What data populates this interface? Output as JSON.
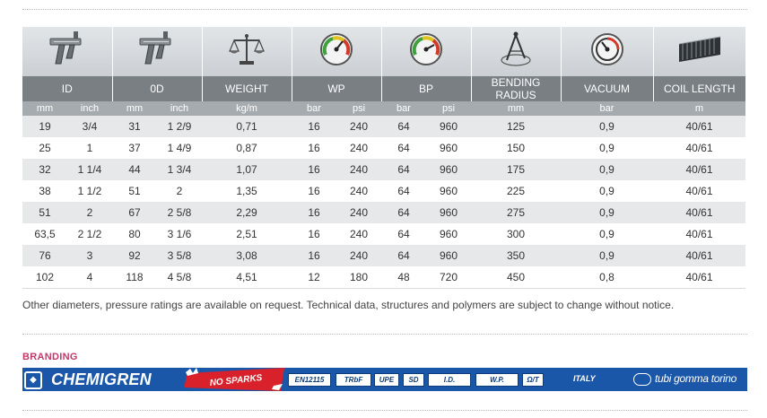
{
  "table": {
    "columns": [
      {
        "label": "ID",
        "icon": "caliper-icon"
      },
      {
        "label": "0D",
        "icon": "caliper-icon"
      },
      {
        "label": "WEIGHT",
        "icon": "scale-icon"
      },
      {
        "label": "WP",
        "icon": "pressure-gauge-icon"
      },
      {
        "label": "BP",
        "icon": "pressure-gauge-icon"
      },
      {
        "label": "BENDING RADIUS",
        "icon": "compass-icon"
      },
      {
        "label": "VACUUM",
        "icon": "vacuum-gauge-icon"
      },
      {
        "label": "COIL LENGTH",
        "icon": "hose-coil-icon"
      }
    ],
    "units": [
      "mm",
      "inch",
      "mm",
      "inch",
      "kg/m",
      "bar",
      "psi",
      "bar",
      "psi",
      "mm",
      "bar",
      "m"
    ],
    "rows": [
      [
        "19",
        "3/4",
        "31",
        "1 2/9",
        "0,71",
        "16",
        "240",
        "64",
        "960",
        "125",
        "0,9",
        "40/61"
      ],
      [
        "25",
        "1",
        "37",
        "1 4/9",
        "0,87",
        "16",
        "240",
        "64",
        "960",
        "150",
        "0,9",
        "40/61"
      ],
      [
        "32",
        "1 1/4",
        "44",
        "1 3/4",
        "1,07",
        "16",
        "240",
        "64",
        "960",
        "175",
        "0,9",
        "40/61"
      ],
      [
        "38",
        "1 1/2",
        "51",
        "2",
        "1,35",
        "16",
        "240",
        "64",
        "960",
        "225",
        "0,9",
        "40/61"
      ],
      [
        "51",
        "2",
        "67",
        "2 5/8",
        "2,29",
        "16",
        "240",
        "64",
        "960",
        "275",
        "0,9",
        "40/61"
      ],
      [
        "63,5",
        "2 1/2",
        "80",
        "3 1/6",
        "2,51",
        "16",
        "240",
        "64",
        "960",
        "300",
        "0,9",
        "40/61"
      ],
      [
        "76",
        "3",
        "92",
        "3 5/8",
        "3,08",
        "16",
        "240",
        "64",
        "960",
        "350",
        "0,9",
        "40/61"
      ],
      [
        "102",
        "4",
        "118",
        "4 5/8",
        "4,51",
        "12",
        "180",
        "48",
        "720",
        "450",
        "0,8",
        "40/61"
      ]
    ]
  },
  "note": "Other diameters, pressure ratings are available on request. Technical data, structures and polymers are subject to change without notice.",
  "branding": {
    "title": "BRANDING",
    "product": "CHEMIGREN",
    "no_sparks": "NO SPARKS",
    "badges": [
      "EN12115",
      "TRbF",
      "UPE",
      "SD",
      "I.D.",
      "W.P.",
      "Ω/T"
    ],
    "country": "ITALY",
    "maker": "tubi gomma torino",
    "band_color": "#1a57a8",
    "accent_color": "#c0396b"
  }
}
